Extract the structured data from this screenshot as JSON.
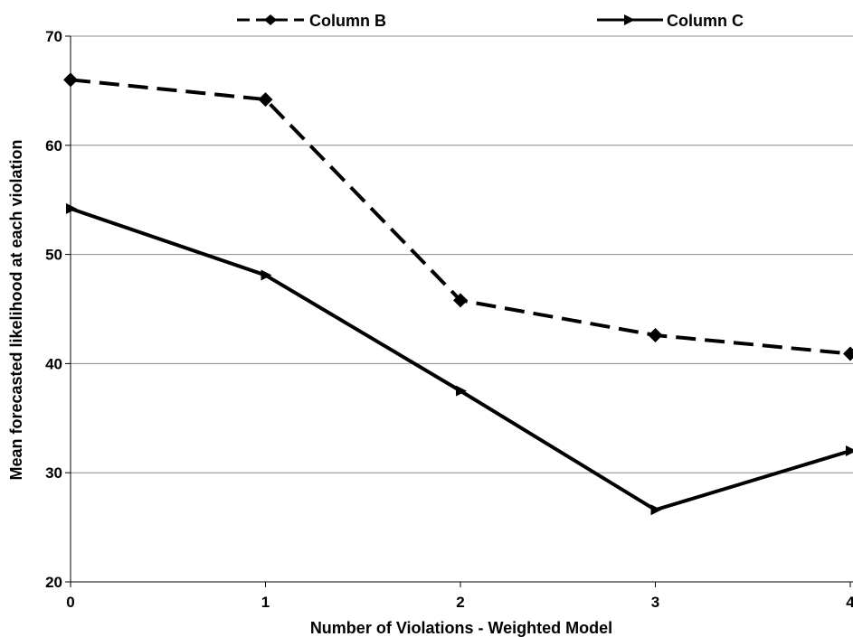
{
  "chart_data": {
    "type": "line",
    "title": "",
    "xlabel": "Number of Violations - Weighted Model",
    "ylabel": "Mean forecasted likelihood at each violation",
    "x": [
      0,
      1,
      2,
      3,
      4
    ],
    "xlim": [
      0,
      4
    ],
    "ylim": [
      20,
      70
    ],
    "yticks": [
      20,
      30,
      40,
      50,
      60,
      70
    ],
    "xticks": [
      0,
      1,
      2,
      3,
      4
    ],
    "grid": "horizontal",
    "legend_position": "top",
    "series": [
      {
        "name": "Column B",
        "values": [
          66.0,
          64.2,
          45.8,
          42.6,
          40.9
        ],
        "line_style": "dashed",
        "marker": "diamond",
        "color": "#000000"
      },
      {
        "name": "Column C",
        "values": [
          54.2,
          48.1,
          37.5,
          26.6,
          32.0
        ],
        "line_style": "solid",
        "marker": "right-triangle",
        "color": "#000000"
      }
    ]
  }
}
